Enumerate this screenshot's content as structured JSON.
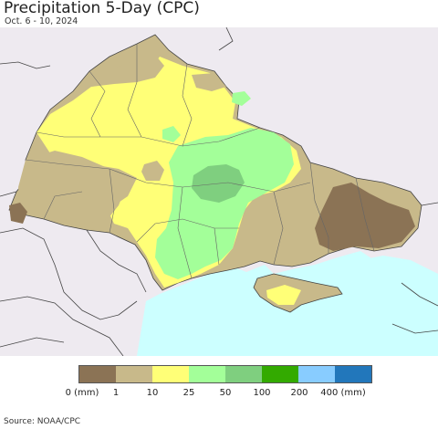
{
  "title": "Precipitation 5-Day (CPC)",
  "subtitle": "Oct. 6 - 10, 2024",
  "source": "Source: NOAA/CPC",
  "colors": {
    "background": "#eeeaf0",
    "sea": "#ccffff",
    "border": "#444444",
    "c0": "#8b7355",
    "c1": "#c8b98a",
    "c10": "#ffff77",
    "c25": "#a3ff99",
    "c50": "#7fcf7f",
    "c100": "#33aa00",
    "c200": "#88ccff",
    "c400": "#2277bb"
  },
  "legend": {
    "swatches": [
      {
        "name": "0-1",
        "color": "#8b7355"
      },
      {
        "name": "1-10",
        "color": "#c8b98a"
      },
      {
        "name": "10-25",
        "color": "#ffff77"
      },
      {
        "name": "25-50",
        "color": "#a3ff99"
      },
      {
        "name": "50-100",
        "color": "#7fcf7f"
      },
      {
        "name": "100-200",
        "color": "#33aa00"
      },
      {
        "name": "200-400",
        "color": "#88ccff"
      },
      {
        "name": "400+",
        "color": "#2277bb"
      }
    ],
    "ticks": [
      "0 (mm)",
      "1",
      "10",
      "25",
      "50",
      "100",
      "200",
      "400 (mm)"
    ]
  }
}
